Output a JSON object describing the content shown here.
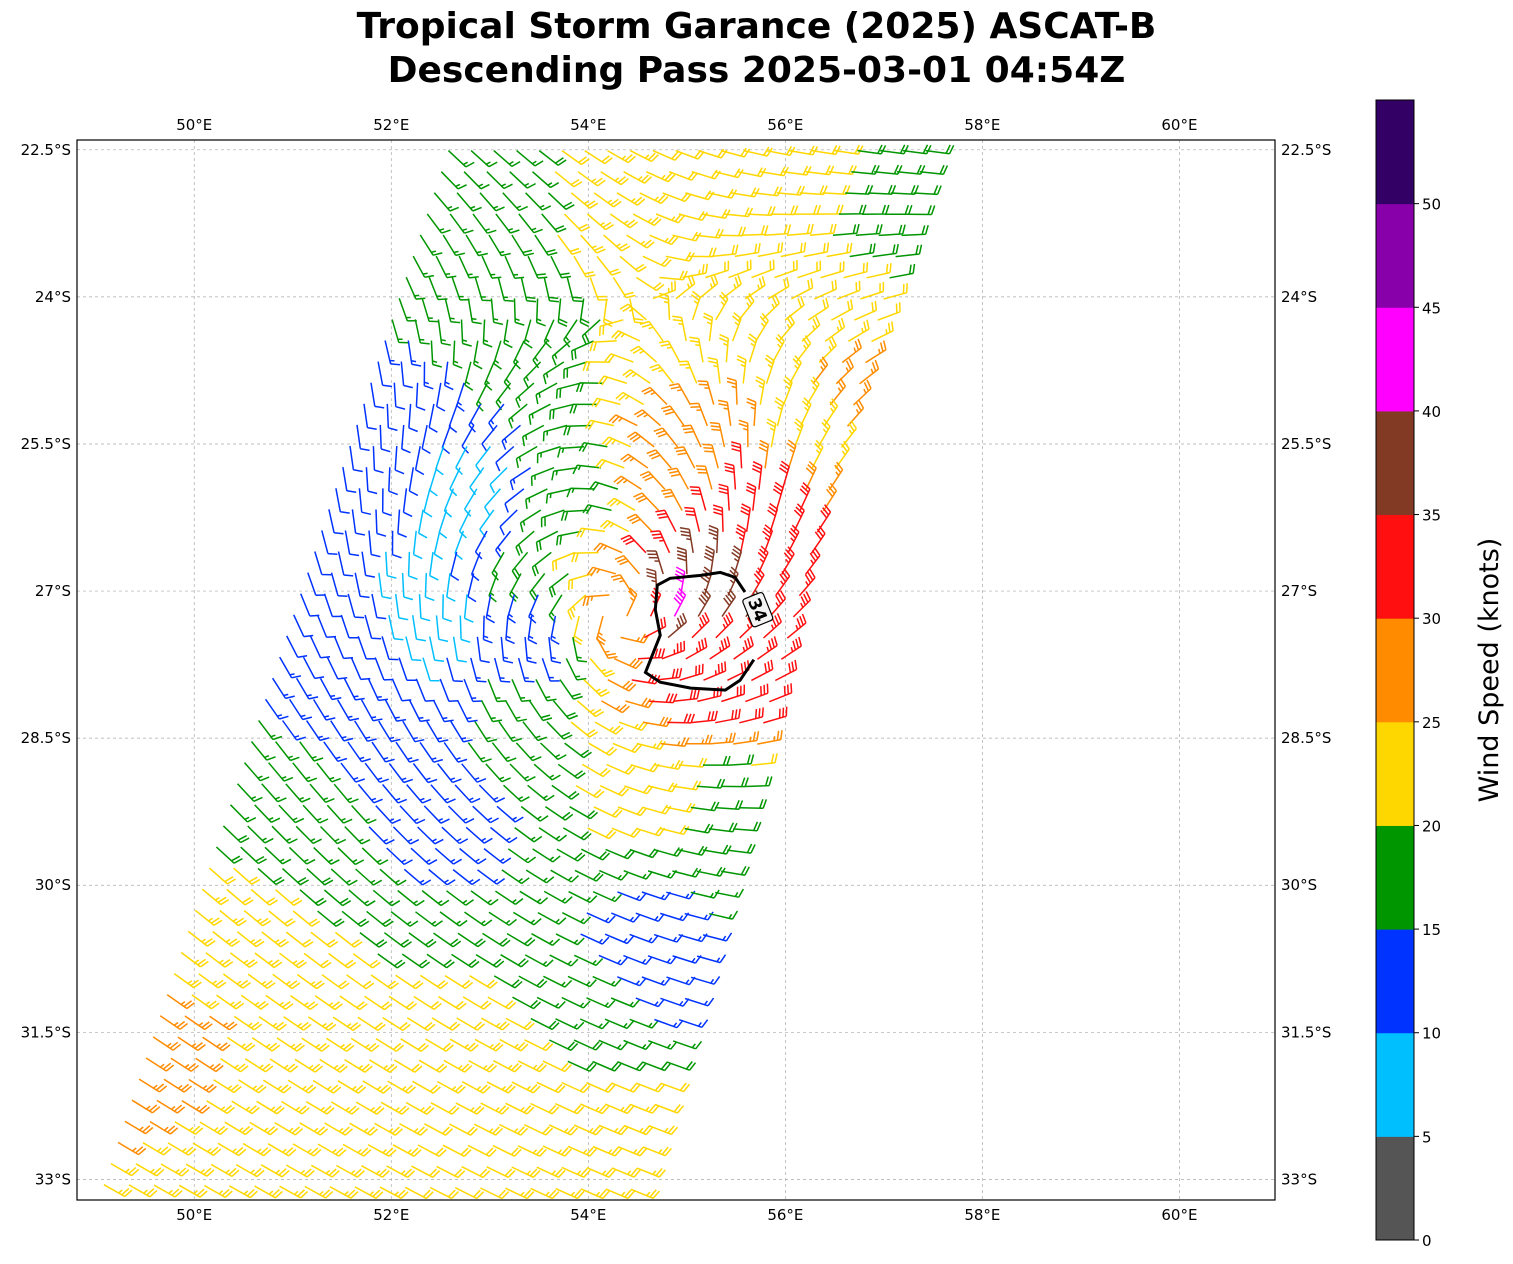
{
  "chart_data": {
    "type": "wind-barb-map",
    "title": [
      "Tropical Storm Garance (2025) ASCAT-B",
      "Descending Pass 2025-03-01 04:54Z"
    ],
    "xlim_lon_e": [
      48.81,
      60.97
    ],
    "ylim_lat_s": [
      22.4,
      33.21
    ],
    "lon_ticks": [
      50,
      52,
      54,
      56,
      58,
      60
    ],
    "lon_tick_labels": [
      "50°E",
      "52°E",
      "54°E",
      "56°E",
      "58°E",
      "60°E"
    ],
    "lat_ticks": [
      22.5,
      24,
      25.5,
      27,
      28.5,
      30,
      31.5,
      33
    ],
    "lat_tick_labels": [
      "22.5°S",
      "24°S",
      "25.5°S",
      "27°S",
      "28.5°S",
      "30°S",
      "31.5°S",
      "33°S"
    ],
    "grid": true,
    "swath": {
      "left_top": [
        52.5,
        22.4
      ],
      "left_bottom": [
        48.92,
        33.16
      ],
      "right_top": [
        57.57,
        22.4
      ],
      "right_bottom": [
        54.53,
        33.21
      ],
      "rows": 50,
      "cols": 22
    },
    "storm_center": [
      54.3,
      27.25
    ],
    "speed_anchors_lon_lat_kt": [
      [
        53.1,
        22.8,
        17
      ],
      [
        54.12,
        23.0,
        23
      ],
      [
        55.65,
        23.0,
        21
      ],
      [
        56.96,
        23.5,
        18
      ],
      [
        56.86,
        25.05,
        27
      ],
      [
        56.15,
        25.5,
        24
      ],
      [
        52.6,
        24.0,
        17
      ],
      [
        52.1,
        25.05,
        12
      ],
      [
        52.9,
        25.9,
        8
      ],
      [
        52.3,
        27.1,
        8
      ],
      [
        51.4,
        27.3,
        12
      ],
      [
        51.4,
        28.3,
        13
      ],
      [
        50.9,
        28.9,
        17
      ],
      [
        52.6,
        29.1,
        13
      ],
      [
        53.3,
        28.7,
        17
      ],
      [
        54.3,
        28.7,
        22
      ],
      [
        55.34,
        29.1,
        18
      ],
      [
        54.5,
        30.7,
        13
      ],
      [
        53.7,
        31.2,
        17
      ],
      [
        53.1,
        31.7,
        23
      ],
      [
        50.06,
        30.7,
        23
      ],
      [
        49.55,
        31.2,
        27
      ],
      [
        51.1,
        32.2,
        23
      ],
      [
        54.1,
        32.7,
        23
      ],
      [
        55.1,
        27.6,
        33
      ],
      [
        55.14,
        27.2,
        38
      ],
      [
        55.0,
        27.2,
        42
      ],
      [
        54.3,
        27.2,
        26
      ],
      [
        55.75,
        26.1,
        32
      ],
      [
        54.9,
        25.7,
        28
      ],
      [
        53.9,
        25.8,
        17
      ],
      [
        53.7,
        26.7,
        20
      ],
      [
        53.5,
        27.3,
        13
      ],
      [
        55.5,
        28.0,
        32
      ],
      [
        54.7,
        28.1,
        31
      ],
      [
        55.9,
        27.0,
        33
      ],
      [
        56.6,
        24.0,
        22
      ],
      [
        55.0,
        24.5,
        23
      ],
      [
        53.5,
        24.5,
        17
      ]
    ],
    "contour_34kt": {
      "label": "34",
      "points_lon_lat": [
        [
          55.68,
          27.7
        ],
        [
          55.54,
          27.91
        ],
        [
          55.39,
          28.01
        ],
        [
          55.04,
          27.99
        ],
        [
          54.73,
          27.93
        ],
        [
          54.58,
          27.83
        ],
        [
          54.73,
          27.45
        ],
        [
          54.68,
          27.19
        ],
        [
          54.7,
          26.94
        ],
        [
          54.83,
          26.87
        ],
        [
          55.14,
          26.84
        ],
        [
          55.34,
          26.81
        ],
        [
          55.49,
          26.86
        ],
        [
          55.59,
          27.01
        ]
      ],
      "label_at": [
        55.72,
        27.19
      ]
    },
    "colorbar": {
      "label": "Wind Speed (knots)",
      "bounds": [
        0,
        5,
        10,
        15,
        20,
        25,
        30,
        35,
        40,
        45,
        50,
        55
      ],
      "colors": [
        "#555555",
        "#00bfff",
        "#0033ff",
        "#009600",
        "#ffd700",
        "#ff8c00",
        "#ff0f0f",
        "#833a25",
        "#ff00ff",
        "#8800aa",
        "#330066"
      ],
      "tick_labels": [
        "0",
        "5",
        "10",
        "15",
        "20",
        "25",
        "30",
        "35",
        "40",
        "45",
        "50"
      ]
    }
  }
}
